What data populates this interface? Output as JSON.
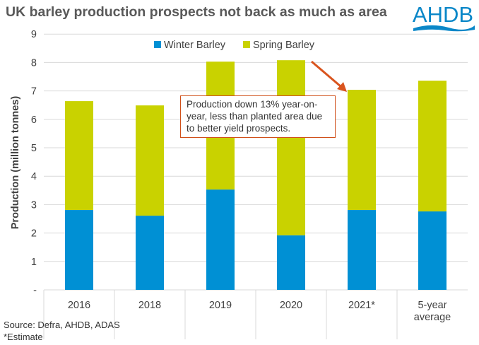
{
  "title": "UK barley production prospects not back as much as area",
  "logo_text": "AHDB",
  "source": "Source: Defra, AHDB, ADAS",
  "footnote": "*Estimate",
  "annotation": "Production down 13% year-on-year, less than planted area due to better yield prospects.",
  "colors": {
    "winter": "#0090d4",
    "spring": "#c9d200",
    "arrow": "#d9541e",
    "logo": "#0a87c8"
  },
  "chart_data": {
    "type": "bar",
    "stacked": true,
    "title": "UK barley production prospects not back as much as area",
    "xlabel": "",
    "ylabel": "Production (million tonnes)",
    "ylim": [
      0,
      9
    ],
    "yticks": [
      "-",
      "1",
      "2",
      "3",
      "4",
      "5",
      "6",
      "7",
      "8",
      "9"
    ],
    "grid": true,
    "legend_position": "top",
    "categories": [
      "2016",
      "2018",
      "2019",
      "2020",
      "2021*",
      "5-year average"
    ],
    "series": [
      {
        "name": "Winter Barley",
        "values": [
          2.81,
          2.61,
          3.53,
          1.92,
          2.81,
          2.76
        ]
      },
      {
        "name": "Spring Barley",
        "values": [
          3.83,
          3.88,
          4.5,
          6.16,
          4.23,
          4.6
        ]
      }
    ]
  }
}
